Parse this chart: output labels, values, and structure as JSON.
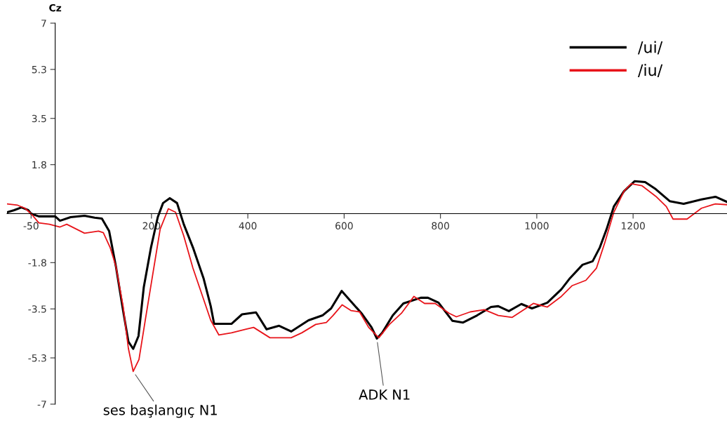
{
  "chart_data": {
    "type": "line",
    "ylabel": "Cz",
    "xlim": [
      -100,
      1395
    ],
    "ylim": [
      -7,
      7
    ],
    "xticks": [
      -50,
      200,
      400,
      600,
      800,
      1000,
      1200
    ],
    "yticks": [
      7,
      5.3,
      3.5,
      1.8,
      -1.8,
      -3.5,
      -5.3,
      -7
    ],
    "grid": false,
    "legend": "top right",
    "line_style": "solid",
    "marker": "none",
    "series": [
      {
        "name": "/ui/",
        "color": "#000000",
        "x": [
          -100,
          -85,
          -70,
          -56,
          -50,
          -34,
          0,
          10,
          32,
          61,
          82,
          97,
          112,
          126,
          141,
          152,
          162,
          173,
          184,
          199,
          213,
          224,
          238,
          253,
          267,
          286,
          308,
          323,
          330,
          366,
          388,
          417,
          439,
          465,
          490,
          526,
          555,
          573,
          595,
          614,
          636,
          657,
          668,
          679,
          701,
          723,
          759,
          774,
          796,
          825,
          847,
          876,
          905,
          920,
          942,
          968,
          990,
          1022,
          1051,
          1069,
          1095,
          1116,
          1131,
          1145,
          1160,
          1181,
          1203,
          1225,
          1247,
          1276,
          1305,
          1342,
          1371,
          1394
        ],
        "values": [
          0.05,
          0.13,
          0.23,
          0.13,
          0,
          -0.1,
          -0.1,
          -0.26,
          -0.13,
          -0.08,
          -0.15,
          -0.18,
          -0.64,
          -1.93,
          -3.56,
          -4.7,
          -4.97,
          -4.5,
          -2.7,
          -1.24,
          -0.13,
          0.39,
          0.57,
          0.39,
          -0.39,
          -1.24,
          -2.37,
          -3.4,
          -4.05,
          -4.05,
          -3.7,
          -3.63,
          -4.25,
          -4.12,
          -4.33,
          -3.92,
          -3.74,
          -3.48,
          -2.84,
          -3.22,
          -3.66,
          -4.18,
          -4.59,
          -4.38,
          -3.74,
          -3.3,
          -3.09,
          -3.09,
          -3.27,
          -3.94,
          -4.0,
          -3.74,
          -3.43,
          -3.4,
          -3.58,
          -3.32,
          -3.48,
          -3.27,
          -2.78,
          -2.37,
          -1.88,
          -1.75,
          -1.24,
          -0.57,
          0.26,
          0.82,
          1.19,
          1.16,
          0.9,
          0.46,
          0.36,
          0.52,
          0.62,
          0.44
        ]
      },
      {
        "name": "/iu/",
        "color": "#e8141a",
        "x": [
          -100,
          -78,
          -63,
          -50,
          -34,
          -12,
          10,
          24,
          61,
          90,
          100,
          114,
          126,
          141,
          152,
          162,
          174,
          187,
          203,
          218,
          235,
          250,
          267,
          286,
          308,
          323,
          340,
          366,
          395,
          412,
          446,
          490,
          512,
          541,
          563,
          577,
          596,
          614,
          632,
          651,
          672,
          694,
          719,
          745,
          767,
          789,
          818,
          833,
          862,
          891,
          920,
          949,
          993,
          1022,
          1051,
          1073,
          1102,
          1124,
          1141,
          1160,
          1181,
          1196,
          1218,
          1247,
          1269,
          1283,
          1312,
          1342,
          1371,
          1394
        ],
        "values": [
          0.36,
          0.31,
          0.2,
          0,
          -0.34,
          -0.39,
          -0.49,
          -0.39,
          -0.72,
          -0.64,
          -0.7,
          -1.24,
          -1.93,
          -3.4,
          -4.95,
          -5.8,
          -5.36,
          -3.92,
          -2.19,
          -0.57,
          0.18,
          0.05,
          -0.82,
          -2.0,
          -3.14,
          -3.92,
          -4.46,
          -4.38,
          -4.25,
          -4.18,
          -4.56,
          -4.56,
          -4.38,
          -4.07,
          -4.0,
          -3.74,
          -3.35,
          -3.56,
          -3.61,
          -4.18,
          -4.56,
          -4.07,
          -3.66,
          -3.04,
          -3.3,
          -3.3,
          -3.66,
          -3.79,
          -3.61,
          -3.53,
          -3.74,
          -3.81,
          -3.3,
          -3.43,
          -3.04,
          -2.65,
          -2.45,
          -2.0,
          -1.08,
          0.05,
          0.82,
          1.1,
          1.03,
          0.64,
          0.26,
          -0.2,
          -0.2,
          0.2,
          0.36,
          0.33
        ]
      }
    ],
    "annotations": [
      {
        "text": "ses başlangıç N1",
        "x": 162,
        "y": -5.8
      },
      {
        "text": "ADK N1",
        "x": 668,
        "y": -4.59
      }
    ]
  }
}
